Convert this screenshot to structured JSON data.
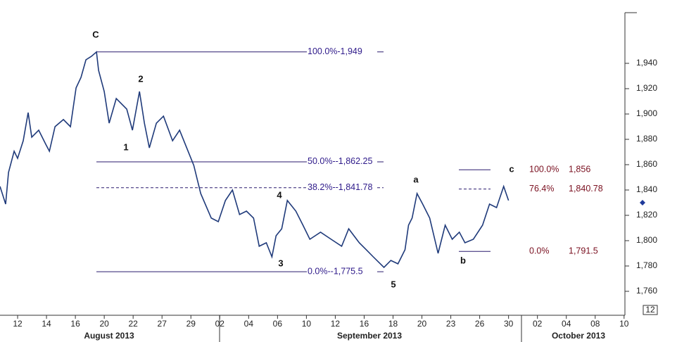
{
  "chart_data": {
    "type": "line",
    "ylim": [
      1741.1,
      1980
    ],
    "yticks": [
      {
        "value": 1760,
        "label": "1,760"
      },
      {
        "value": 1780,
        "label": "1,780"
      },
      {
        "value": 1800,
        "label": "1,800"
      },
      {
        "value": 1820,
        "label": "1,820"
      },
      {
        "value": 1840,
        "label": "1,840"
      },
      {
        "value": 1860,
        "label": "1,860"
      },
      {
        "value": 1880,
        "label": "1,880"
      },
      {
        "value": 1900,
        "label": "1,900"
      },
      {
        "value": 1920,
        "label": "1,920"
      },
      {
        "value": 1940,
        "label": "1,940"
      }
    ],
    "xlim": [
      -1.22,
      42.4
    ],
    "xticks": [
      {
        "value": 0,
        "label": "12"
      },
      {
        "value": 2,
        "label": "14"
      },
      {
        "value": 4,
        "label": "16"
      },
      {
        "value": 6,
        "label": "20"
      },
      {
        "value": 8,
        "label": "22"
      },
      {
        "value": 10,
        "label": "27"
      },
      {
        "value": 12,
        "label": "29"
      },
      {
        "value": 14,
        "label": "02"
      },
      {
        "value": 16,
        "label": "04"
      },
      {
        "value": 18,
        "label": "06"
      },
      {
        "value": 20,
        "label": "10"
      },
      {
        "value": 22,
        "label": "12"
      },
      {
        "value": 24,
        "label": "16"
      },
      {
        "value": 26,
        "label": "18"
      },
      {
        "value": 28,
        "label": "20"
      },
      {
        "value": 30,
        "label": "23"
      },
      {
        "value": 32,
        "label": "26"
      },
      {
        "value": 34,
        "label": "30"
      },
      {
        "value": 36,
        "label": "02"
      },
      {
        "value": 38,
        "label": "04"
      },
      {
        "value": 40,
        "label": "08"
      },
      {
        "value": 42,
        "label": "10"
      }
    ],
    "months": [
      "August 2013",
      "September 2013",
      "October 2013"
    ],
    "series": [
      {
        "color": "#1f3a7a",
        "x": [
          -1.22,
          -0.83,
          -0.63,
          -0.24,
          0,
          0.39,
          0.73,
          0.98,
          1.46,
          1.95,
          2.2,
          2.59,
          3.17,
          3.66,
          4.05,
          4.39,
          4.73,
          5.12,
          5.46,
          5.61,
          6.0,
          6.34,
          6.83,
          7.56,
          7.95,
          8.44,
          8.78,
          9.12,
          9.61,
          10.1,
          10.73,
          11.22,
          11.71,
          12.2,
          12.68,
          13.41,
          13.9,
          14.39,
          14.88,
          15.37,
          15.85,
          16.34,
          16.73,
          17.22,
          17.61,
          17.9,
          18.29,
          18.68,
          19.27,
          19.76,
          20.24,
          20.98,
          21.71,
          22.44,
          22.93,
          23.66,
          24.15,
          24.63,
          25.37,
          25.85,
          26.34,
          26.83,
          27.07,
          27.32,
          27.66,
          28.05,
          28.54,
          29.12,
          29.61,
          30.1,
          30.59,
          30.98,
          31.56,
          32.2,
          32.68,
          33.17,
          33.66,
          34.0
        ],
        "values": [
          1842.8,
          1828.9,
          1853.9,
          1870.6,
          1865,
          1878.9,
          1901.1,
          1881.7,
          1887.2,
          1876.1,
          1870.6,
          1890,
          1895.6,
          1890,
          1920.6,
          1928.9,
          1942.8,
          1945.6,
          1949,
          1934.4,
          1917.8,
          1892.8,
          1912.2,
          1903.9,
          1887.2,
          1917.8,
          1892.8,
          1873.3,
          1892.8,
          1898.3,
          1878.9,
          1887.2,
          1873.3,
          1859.4,
          1837.2,
          1817.8,
          1815,
          1831.7,
          1840,
          1820.6,
          1823.3,
          1817.8,
          1795.6,
          1798.3,
          1787.2,
          1803.9,
          1809.4,
          1831.7,
          1823.3,
          1812.2,
          1801.1,
          1806.7,
          1801.1,
          1795.6,
          1809.4,
          1798.3,
          1792.8,
          1787.2,
          1778.9,
          1784.4,
          1781.7,
          1792.8,
          1812.2,
          1817.8,
          1837.2,
          1828.9,
          1817.8,
          1790,
          1812.2,
          1801.1,
          1806.7,
          1798.3,
          1801.1,
          1812.2,
          1828.9,
          1826.1,
          1842.8,
          1831.7
        ]
      }
    ],
    "fib_left": [
      {
        "value": 1949,
        "label": "100.0%-1,949",
        "dashed": false
      },
      {
        "value": 1862.25,
        "label": "50.0%--1,862.25",
        "dashed": false
      },
      {
        "value": 1841.78,
        "label": "38.2%--1,841.78",
        "dashed": true
      },
      {
        "value": 1775.5,
        "label": "0.0%--1,775.5",
        "dashed": false
      }
    ],
    "fib_right": [
      {
        "value": 1856,
        "percent": "100.0%",
        "label": "1,856",
        "dashed": false
      },
      {
        "value": 1840.78,
        "percent": "76.4%",
        "label": "1,840.78",
        "dashed": true
      },
      {
        "value": 1791.5,
        "percent": "0.0%",
        "label": "1,791.5",
        "dashed": false
      }
    ],
    "wave_labels": [
      "C",
      "2",
      "1",
      "4",
      "3",
      "5",
      "a",
      "b",
      "c"
    ],
    "last_price": 1830,
    "corner_label": "12"
  }
}
